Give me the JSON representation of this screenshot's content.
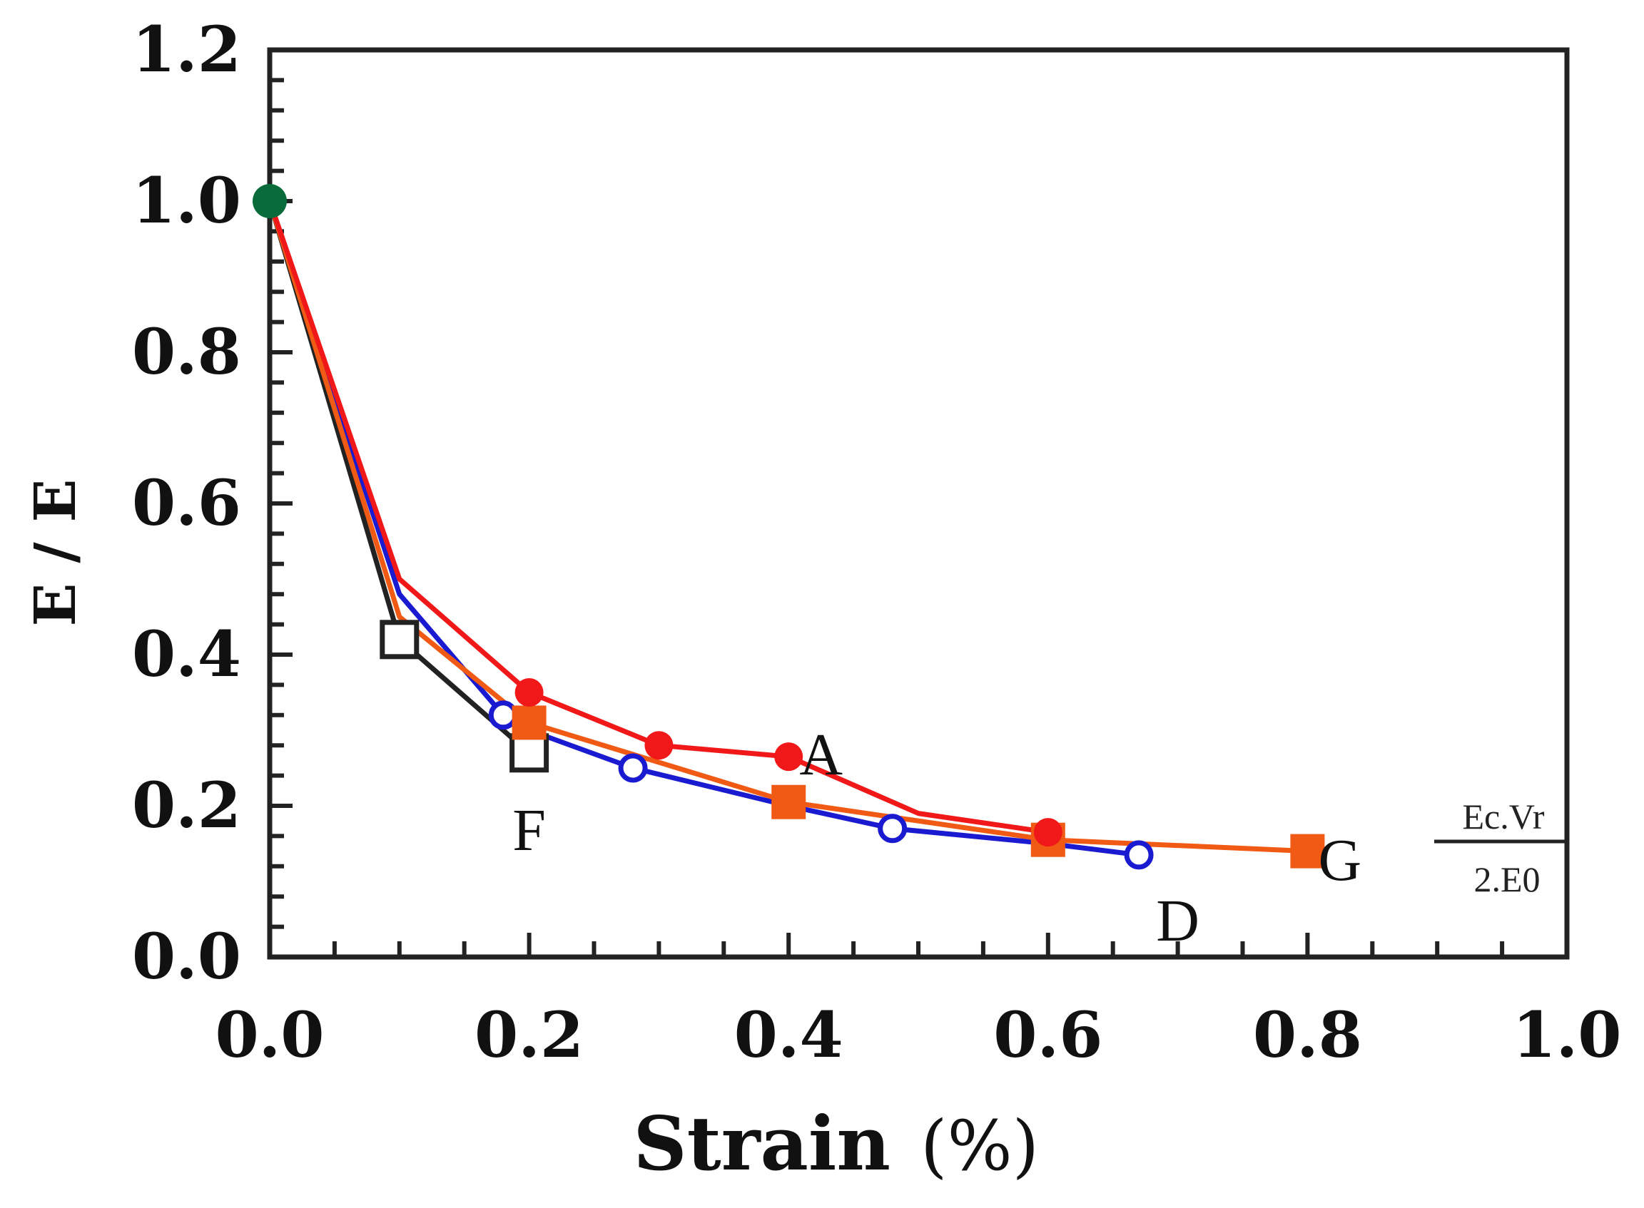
{
  "chart_data": {
    "type": "line",
    "title": "",
    "xlabel": "Strain",
    "xlabel_unit": "(%)",
    "ylabel": "E / E",
    "xlim": [
      0.0,
      1.0
    ],
    "ylim": [
      0.0,
      1.2
    ],
    "xticks": [
      "0.0",
      "0.2",
      "0.4",
      "0.6",
      "0.8",
      "1.0"
    ],
    "yticks": [
      "0.0",
      "0.2",
      "0.4",
      "0.6",
      "0.8",
      "1.0",
      "1.2"
    ],
    "start_point": {
      "x": 0.0,
      "y": 1.0,
      "color": "#0a6b3a"
    },
    "series": [
      {
        "name": "A",
        "color": "#f01818",
        "marker": "filled-circle",
        "x": [
          0.0,
          0.1,
          0.2,
          0.3,
          0.4,
          0.5,
          0.6
        ],
        "y": [
          1.0,
          0.5,
          0.35,
          0.28,
          0.265,
          0.19,
          0.165
        ],
        "marker_x": [
          0.2,
          0.3,
          0.4,
          0.6
        ],
        "marker_y": [
          0.35,
          0.28,
          0.265,
          0.165
        ]
      },
      {
        "name": "D",
        "color": "#1a1ad0",
        "marker": "open-circle",
        "x": [
          0.0,
          0.1,
          0.18,
          0.2,
          0.28,
          0.4,
          0.48,
          0.6,
          0.67
        ],
        "y": [
          1.0,
          0.48,
          0.32,
          0.3,
          0.25,
          0.2,
          0.17,
          0.15,
          0.135
        ],
        "marker_x": [
          0.18,
          0.28,
          0.48,
          0.67
        ],
        "marker_y": [
          0.32,
          0.25,
          0.17,
          0.135
        ]
      },
      {
        "name": "F",
        "color": "#222222",
        "marker": "open-square",
        "x": [
          0.0,
          0.1,
          0.2
        ],
        "y": [
          1.0,
          0.42,
          0.27
        ],
        "marker_x": [
          0.1,
          0.2
        ],
        "marker_y": [
          0.42,
          0.27
        ]
      },
      {
        "name": "G",
        "color": "#f05a14",
        "marker": "filled-square",
        "x": [
          0.0,
          0.1,
          0.2,
          0.4,
          0.6,
          0.8
        ],
        "y": [
          1.0,
          0.45,
          0.31,
          0.205,
          0.155,
          0.14
        ],
        "marker_x": [
          0.2,
          0.4,
          0.6,
          0.8
        ],
        "marker_y": [
          0.31,
          0.205,
          0.155,
          0.14
        ]
      }
    ],
    "annotations": [
      {
        "text": "A",
        "x": 0.425,
        "y": 0.27
      },
      {
        "text": "F",
        "x": 0.2,
        "y": 0.17
      },
      {
        "text": "G",
        "x": 0.825,
        "y": 0.13
      },
      {
        "text": "D",
        "x": 0.7,
        "y": 0.05
      }
    ],
    "formula": {
      "numerator": "Ec.Vr",
      "denominator": "2.E0"
    }
  }
}
